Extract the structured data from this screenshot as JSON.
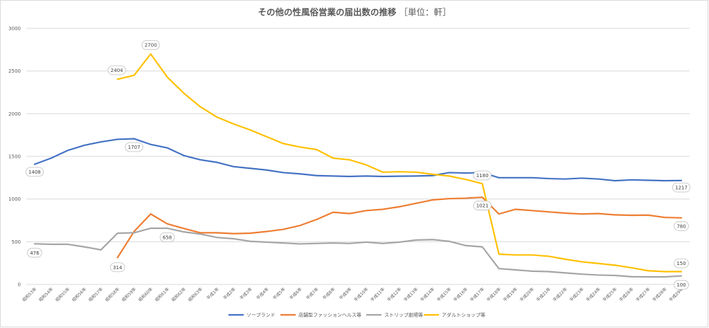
{
  "chart_data": {
    "type": "line",
    "title": "その他の性風俗営業の届出数の推移",
    "title_unit": "［単位：軒］",
    "ylim": [
      0,
      3000
    ],
    "yticks": [
      0,
      500,
      1000,
      1500,
      2000,
      2500,
      3000
    ],
    "grid": true,
    "legend_position": "bottom",
    "categories": [
      "昭和53年",
      "昭和54年",
      "昭和55年",
      "昭和56年",
      "昭和57年",
      "昭和58年",
      "昭和59年",
      "昭和60年",
      "昭和61年",
      "昭和62年",
      "昭和63年",
      "平成1年",
      "平成2年",
      "平成3年",
      "平成4年",
      "平成5年",
      "平成6年",
      "平成7年",
      "平成8年",
      "平成9年",
      "平成10年",
      "平成11年",
      "平成12年",
      "平成13年",
      "平成14年",
      "平成15年",
      "平成16年",
      "平成17年",
      "平成18年",
      "平成19年",
      "平成20年",
      "平成21年",
      "平成22年",
      "平成23年",
      "平成24年",
      "平成25年",
      "平成26年",
      "平成27年",
      "平成28年",
      "平成29年"
    ],
    "series": [
      {
        "name": "ソープランド",
        "color": "#4472c4",
        "values": [
          1408,
          1480,
          1570,
          1630,
          1670,
          1700,
          1707,
          1640,
          1600,
          1510,
          1460,
          1430,
          1380,
          1360,
          1340,
          1310,
          1295,
          1275,
          1270,
          1265,
          1270,
          1265,
          1268,
          1270,
          1275,
          1310,
          1305,
          1310,
          1250,
          1250,
          1250,
          1240,
          1235,
          1245,
          1235,
          1215,
          1225,
          1220,
          1215,
          1217
        ]
      },
      {
        "name": "店舗型ファッションヘルス等",
        "color": "#ed7d31",
        "values": [
          null,
          null,
          null,
          null,
          null,
          314,
          620,
          825,
          710,
          655,
          605,
          605,
          595,
          600,
          620,
          645,
          690,
          760,
          845,
          830,
          865,
          880,
          910,
          950,
          990,
          1005,
          1010,
          1021,
          825,
          880,
          865,
          850,
          835,
          825,
          830,
          815,
          810,
          812,
          785,
          780
        ]
      },
      {
        "name": "ストリップ劇場等",
        "color": "#a5a5a5",
        "values": [
          476,
          470,
          470,
          440,
          405,
          600,
          605,
          658,
          658,
          615,
          590,
          550,
          535,
          505,
          495,
          485,
          475,
          480,
          485,
          480,
          495,
          480,
          495,
          520,
          525,
          505,
          455,
          440,
          185,
          170,
          155,
          150,
          135,
          120,
          110,
          105,
          90,
          88,
          88,
          100
        ]
      },
      {
        "name": "アダルトショップ等",
        "color": "#ffc000",
        "values": [
          null,
          null,
          null,
          null,
          null,
          2404,
          2450,
          2700,
          2430,
          2240,
          2080,
          1960,
          1880,
          1810,
          1730,
          1650,
          1610,
          1580,
          1480,
          1460,
          1400,
          1315,
          1320,
          1315,
          1290,
          1270,
          1230,
          1180,
          355,
          345,
          345,
          330,
          295,
          265,
          245,
          225,
          195,
          160,
          150,
          150
        ]
      }
    ],
    "data_labels": [
      {
        "series": 0,
        "index": 0,
        "text": "1408"
      },
      {
        "series": 0,
        "index": 6,
        "text": "1707"
      },
      {
        "series": 0,
        "index": 39,
        "text": "1217"
      },
      {
        "series": 1,
        "index": 5,
        "text": "314"
      },
      {
        "series": 1,
        "index": 27,
        "text": "1021"
      },
      {
        "series": 1,
        "index": 39,
        "text": "780"
      },
      {
        "series": 2,
        "index": 0,
        "text": "476"
      },
      {
        "series": 2,
        "index": 8,
        "text": "658"
      },
      {
        "series": 2,
        "index": 39,
        "text": "100"
      },
      {
        "series": 3,
        "index": 5,
        "text": "2404"
      },
      {
        "series": 3,
        "index": 7,
        "text": "2700"
      },
      {
        "series": 3,
        "index": 27,
        "text": "1180"
      },
      {
        "series": 3,
        "index": 39,
        "text": "150"
      }
    ]
  }
}
